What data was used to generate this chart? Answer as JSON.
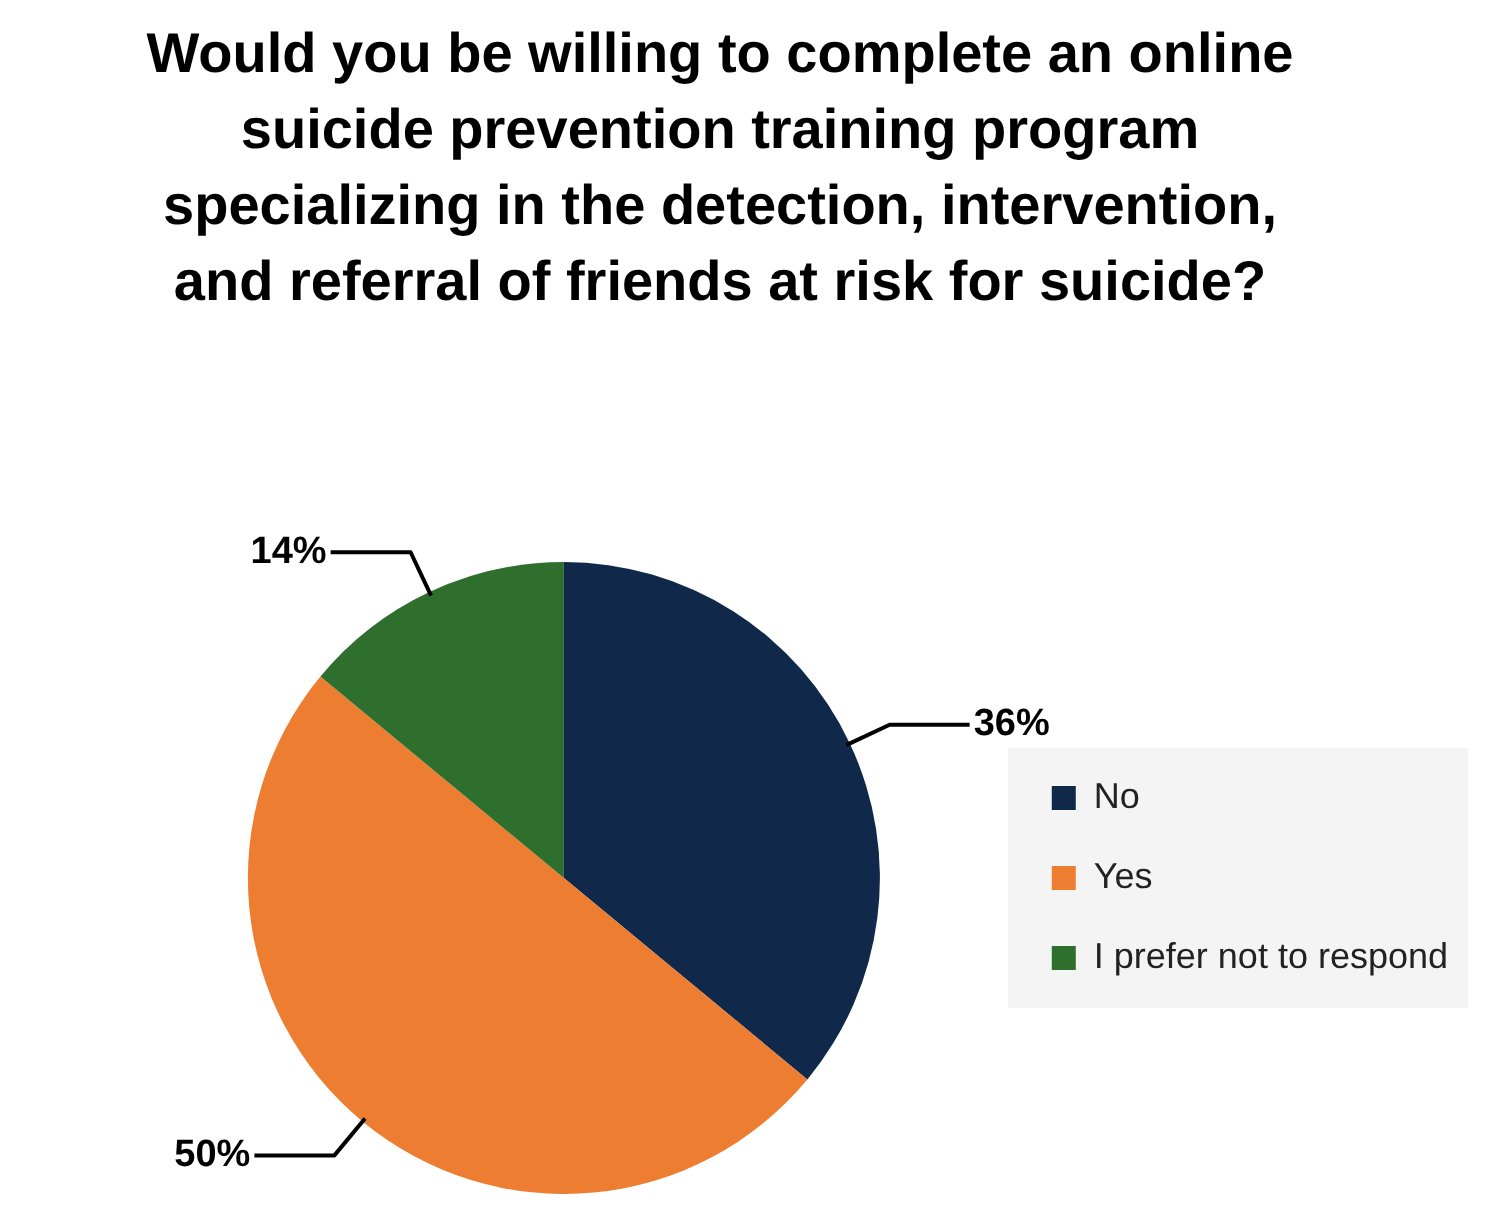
{
  "chart_data": {
    "type": "pie",
    "title": "Would you be willing to complete an online suicide prevention training program specializing in the detection, intervention, and referral of friends at risk for suicide?",
    "categories": [
      "No",
      "Yes",
      "I prefer not to respond"
    ],
    "values": [
      36,
      50,
      14
    ],
    "colors": [
      "#10294a",
      "#ed7d31",
      "#2e6f2e"
    ],
    "value_labels": [
      "36%",
      "50%",
      "14%"
    ],
    "legend": "right"
  }
}
